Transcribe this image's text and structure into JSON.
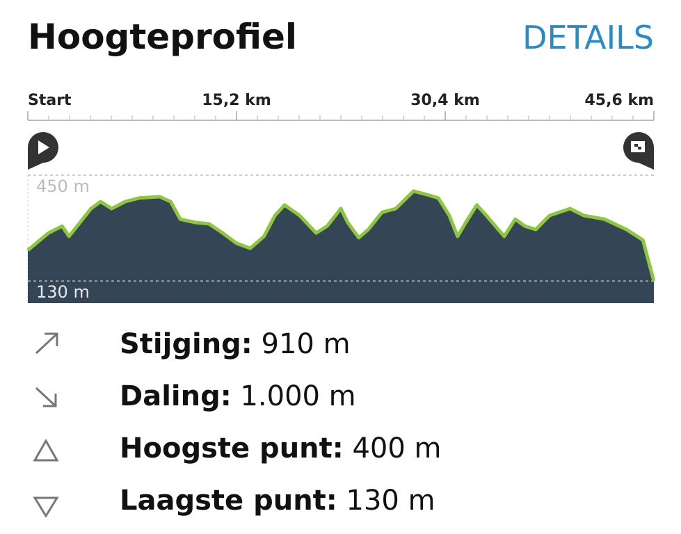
{
  "header": {
    "title": "Hoogteprofiel",
    "action": "DETAILS"
  },
  "chart_data": {
    "type": "area",
    "x": [
      0,
      1.5,
      2.5,
      3.0,
      4.6,
      5.3,
      6.1,
      7.1,
      8.1,
      9.6,
      10.4,
      11.1,
      12.2,
      13.2,
      14.2,
      15.2,
      16.2,
      17.2,
      18.0,
      18.7,
      19.8,
      21.0,
      21.8,
      22.8,
      23.3,
      24.1,
      24.8,
      25.8,
      26.8,
      28.1,
      29.1,
      29.9,
      30.7,
      31.3,
      31.9,
      32.7,
      33.4,
      34.7,
      35.5,
      36.2,
      37.0,
      38.0,
      39.5,
      40.5,
      42.0,
      43.6,
      44.8,
      45.6
    ],
    "values": [
      223,
      275,
      296,
      265,
      349,
      370,
      349,
      370,
      381,
      385,
      370,
      317,
      307,
      303,
      275,
      244,
      229,
      265,
      328,
      360,
      328,
      275,
      296,
      349,
      307,
      261,
      286,
      338,
      349,
      402,
      391,
      381,
      328,
      265,
      307,
      360,
      328,
      265,
      317,
      296,
      286,
      328,
      349,
      328,
      317,
      286,
      254,
      130
    ],
    "color": "#8dc63f",
    "fill": "#344555",
    "xlim": [
      0,
      45.6
    ],
    "xticks": [
      {
        "value": 0,
        "label": "Start"
      },
      {
        "value": 15.2,
        "label": "15,2 km"
      },
      {
        "value": 30.4,
        "label": "30,4 km"
      },
      {
        "value": 45.6,
        "label": "45,6 km"
      }
    ],
    "ylim": [
      63,
      450
    ],
    "yticks": [
      {
        "value": 450,
        "label": "450 m"
      },
      {
        "value": 130,
        "label": "130 m"
      }
    ]
  },
  "stats": [
    {
      "label": "Stijging:",
      "value": "910 m"
    },
    {
      "label": "Daling:",
      "value": "1.000 m"
    },
    {
      "label": "Hoogste punt:",
      "value": "400 m"
    },
    {
      "label": "Laagste punt:",
      "value": "130 m"
    }
  ]
}
